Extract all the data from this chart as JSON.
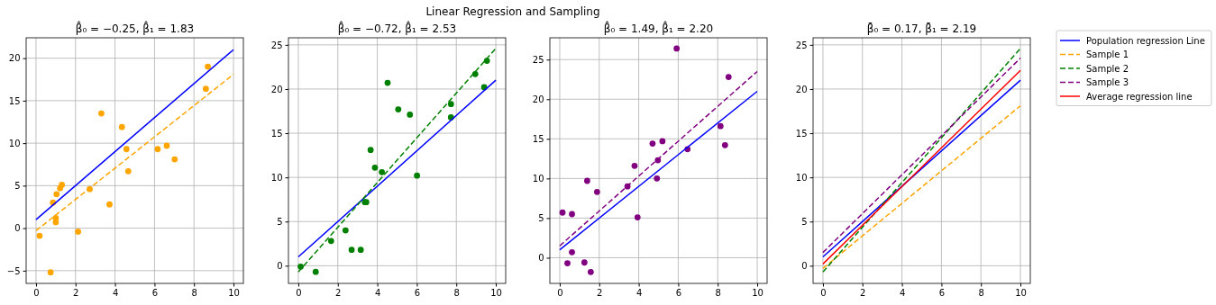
{
  "chart_data": [
    {
      "type": "scatter",
      "title": "β̂₀ = −0.25, β̂₁ = 1.83",
      "annotations": [
        "Linear Regression and Sampling"
      ],
      "xlim": [
        -0.5,
        10.5
      ],
      "ylim": [
        -6.5,
        22.4
      ],
      "xticks": [
        0,
        2,
        4,
        6,
        8,
        10
      ],
      "yticks": [
        {
          "value": -5,
          "label": "−5"
        },
        0,
        5,
        10,
        15,
        20
      ],
      "grid": true,
      "series": [
        {
          "color": "#ffa500",
          "marker": "circle",
          "x": [
            0.18,
            0.86,
            1.0,
            1.0,
            1.04,
            1.22,
            1.31,
            0.74,
            2.13,
            2.72,
            3.31,
            3.72,
            4.35,
            4.58,
            4.67,
            6.16,
            6.62,
            7.02,
            8.6,
            8.7
          ],
          "values": [
            -0.9,
            3.0,
            1.2,
            0.7,
            4.0,
            4.7,
            5.1,
            -5.2,
            -0.4,
            4.6,
            13.5,
            2.8,
            11.9,
            9.3,
            6.7,
            9.3,
            9.7,
            8.1,
            16.4,
            19.0
          ]
        },
        {
          "type": "line",
          "color": "#0000ff",
          "line_style": "solid",
          "x": [
            0,
            10
          ],
          "values": [
            1,
            21
          ]
        },
        {
          "type": "line",
          "color": "#ffa500",
          "line_style": "dashed",
          "x": [
            0,
            10
          ],
          "values": [
            -0.3,
            18.1
          ]
        }
      ]
    },
    {
      "type": "scatter",
      "title": "β̂₀ = −0.72, β̂₁ = 2.53",
      "xlim": [
        -0.5,
        10.5
      ],
      "ylim": [
        -2.0,
        25.8
      ],
      "xticks": [
        0,
        2,
        4,
        6,
        8,
        10
      ],
      "yticks": [
        0,
        5,
        10,
        15,
        20,
        25
      ],
      "grid": true,
      "series": [
        {
          "color": "#008000",
          "marker": "circle",
          "x": [
            0.12,
            0.88,
            1.66,
            2.39,
            2.7,
            3.16,
            3.37,
            3.44,
            3.66,
            3.88,
            4.23,
            4.52,
            5.06,
            5.65,
            6.01,
            7.73,
            7.73,
            8.96,
            9.41,
            9.55
          ],
          "values": [
            -0.1,
            -0.7,
            2.8,
            4.0,
            1.8,
            1.8,
            7.2,
            7.2,
            13.1,
            11.1,
            10.6,
            20.7,
            17.7,
            17.1,
            10.2,
            18.3,
            16.8,
            21.7,
            20.2,
            23.2
          ]
        },
        {
          "type": "line",
          "color": "#0000ff",
          "line_style": "solid",
          "x": [
            0,
            10
          ],
          "values": [
            1,
            21
          ]
        },
        {
          "type": "line",
          "color": "#008000",
          "line_style": "dashed",
          "x": [
            0,
            10
          ],
          "values": [
            -0.7,
            24.6
          ]
        }
      ]
    },
    {
      "type": "scatter",
      "title": "β̂₀ = 1.49, β̂₁ = 2.20",
      "xlim": [
        -0.5,
        10.5
      ],
      "ylim": [
        -3.24,
        27.75
      ],
      "xticks": [
        0,
        2,
        4,
        6,
        8,
        10
      ],
      "yticks": [
        0,
        5,
        10,
        15,
        20,
        25
      ],
      "grid": true,
      "series": [
        {
          "color": "#800080",
          "marker": "circle",
          "x": [
            0.14,
            0.62,
            0.62,
            0.39,
            1.25,
            1.39,
            1.57,
            1.89,
            3.43,
            3.79,
            3.94,
            4.7,
            4.92,
            4.97,
            5.2,
            5.92,
            6.47,
            8.14,
            8.37,
            8.55
          ],
          "values": [
            5.7,
            5.5,
            0.7,
            -0.7,
            -0.6,
            9.7,
            -1.8,
            8.3,
            9.0,
            11.6,
            5.1,
            14.4,
            10.0,
            12.3,
            14.7,
            26.4,
            13.7,
            16.6,
            14.2,
            22.8
          ]
        },
        {
          "type": "line",
          "color": "#0000ff",
          "line_style": "solid",
          "x": [
            0,
            10
          ],
          "values": [
            1,
            21
          ]
        },
        {
          "type": "line",
          "color": "#800080",
          "line_style": "dashed",
          "x": [
            0,
            10
          ],
          "values": [
            1.5,
            23.5
          ]
        }
      ]
    },
    {
      "type": "line",
      "title": "β̄₀ = 0.17, β̄₁ = 2.19",
      "xlim": [
        -0.5,
        10.5
      ],
      "ylim": [
        -2.0,
        25.8
      ],
      "xticks": [
        0,
        2,
        4,
        6,
        8,
        10
      ],
      "yticks": [
        0,
        5,
        10,
        15,
        20,
        25
      ],
      "grid": true,
      "legend": "right",
      "series": [
        {
          "name": "Population regression Line",
          "color": "#0000ff",
          "line_style": "solid",
          "x": [
            0,
            10
          ],
          "values": [
            1,
            21
          ]
        },
        {
          "name": "Sample 1",
          "color": "#ffa500",
          "line_style": "dashed",
          "x": [
            0,
            10
          ],
          "values": [
            -0.3,
            18.1
          ]
        },
        {
          "name": "Sample 2",
          "color": "#008000",
          "line_style": "dashed",
          "x": [
            0,
            10
          ],
          "values": [
            -0.7,
            24.6
          ]
        },
        {
          "name": "Sample 3",
          "color": "#800080",
          "line_style": "dashed",
          "x": [
            0,
            10
          ],
          "values": [
            1.5,
            23.5
          ]
        },
        {
          "name": "Average regression line",
          "color": "#ff0000",
          "line_style": "solid",
          "x": [
            0,
            10
          ],
          "values": [
            0.2,
            22.1
          ]
        }
      ]
    }
  ]
}
